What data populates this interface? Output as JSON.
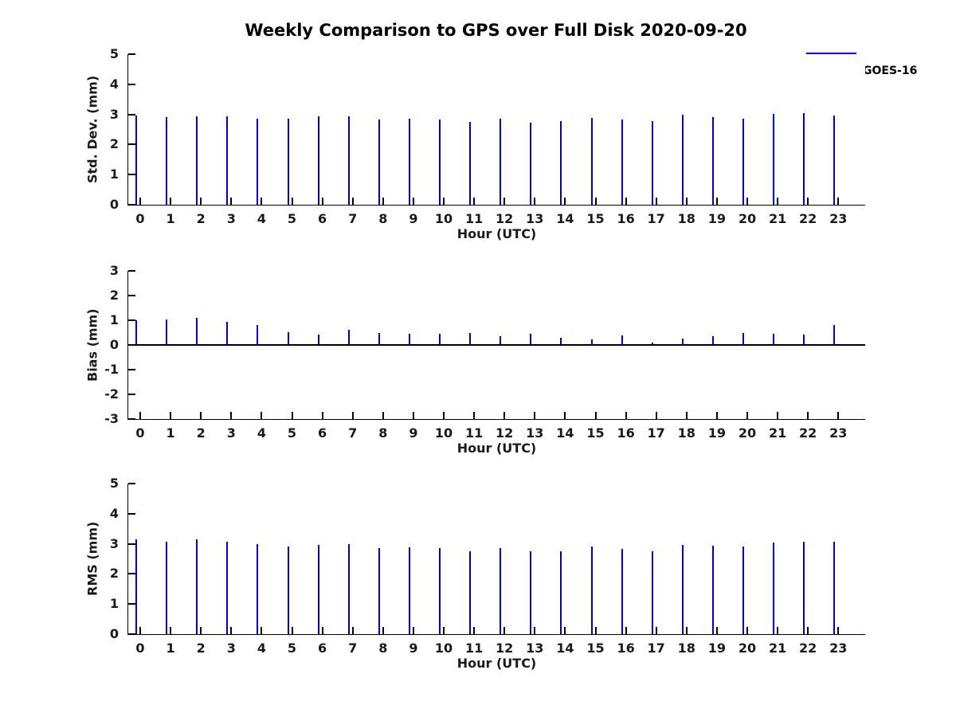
{
  "title": "Weekly Comparison to GPS over Full Disk 2020-09-20",
  "legend": {
    "position": "top-right",
    "entries": [
      {
        "label": "GOES-16",
        "color": "#0000EE"
      }
    ]
  },
  "colors": {
    "bar_fill": "#0000EE",
    "bar_edge": "#0000B8",
    "axis": "#000000",
    "text": "#1a1a1a",
    "background": "#ffffff"
  },
  "chart_data": [
    {
      "type": "bar",
      "panel": "std-dev",
      "series_name": "GOES-16",
      "ylabel": "Std. Dev. (mm)",
      "xlabel": "Hour (UTC)",
      "ylim": [
        0,
        5
      ],
      "yticks": [
        0,
        1,
        2,
        3,
        4,
        5
      ],
      "grid": false,
      "categories": [
        "0",
        "1",
        "2",
        "3",
        "4",
        "5",
        "6",
        "7",
        "8",
        "9",
        "10",
        "11",
        "12",
        "13",
        "14",
        "15",
        "16",
        "17",
        "18",
        "19",
        "20",
        "21",
        "22",
        "23"
      ],
      "values": [
        2.97,
        2.9,
        2.93,
        2.93,
        2.87,
        2.87,
        2.93,
        2.93,
        2.82,
        2.85,
        2.82,
        2.74,
        2.87,
        2.72,
        2.77,
        2.89,
        2.82,
        2.79,
        2.98,
        2.92,
        2.87,
        3.01,
        3.04,
        2.95
      ]
    },
    {
      "type": "bar",
      "panel": "bias",
      "series_name": "GOES-16",
      "ylabel": "Bias (mm)",
      "xlabel": "Hour (UTC)",
      "ylim": [
        -3,
        3
      ],
      "yticks": [
        -3,
        -2,
        -1,
        0,
        1,
        2,
        3
      ],
      "grid": false,
      "categories": [
        "0",
        "1",
        "2",
        "3",
        "4",
        "5",
        "6",
        "7",
        "8",
        "9",
        "10",
        "11",
        "12",
        "13",
        "14",
        "15",
        "16",
        "17",
        "18",
        "19",
        "20",
        "21",
        "22",
        "23"
      ],
      "values": [
        1.0,
        1.03,
        1.1,
        0.95,
        0.82,
        0.53,
        0.42,
        0.61,
        0.47,
        0.45,
        0.44,
        0.48,
        0.35,
        0.45,
        0.28,
        0.24,
        0.4,
        0.09,
        0.25,
        0.37,
        0.47,
        0.44,
        0.43,
        0.82
      ]
    },
    {
      "type": "bar",
      "panel": "rms",
      "series_name": "GOES-16",
      "ylabel": "RMS (mm)",
      "xlabel": "Hour (UTC)",
      "ylim": [
        0,
        5
      ],
      "yticks": [
        0,
        1,
        2,
        3,
        4,
        5
      ],
      "grid": false,
      "categories": [
        "0",
        "1",
        "2",
        "3",
        "4",
        "5",
        "6",
        "7",
        "8",
        "9",
        "10",
        "11",
        "12",
        "13",
        "14",
        "15",
        "16",
        "17",
        "18",
        "19",
        "20",
        "21",
        "22",
        "23"
      ],
      "values": [
        3.15,
        3.07,
        3.15,
        3.07,
        2.98,
        2.9,
        2.95,
        2.98,
        2.85,
        2.88,
        2.85,
        2.76,
        2.86,
        2.75,
        2.76,
        2.91,
        2.84,
        2.76,
        2.96,
        2.93,
        2.9,
        3.05,
        3.07,
        3.06
      ]
    }
  ]
}
